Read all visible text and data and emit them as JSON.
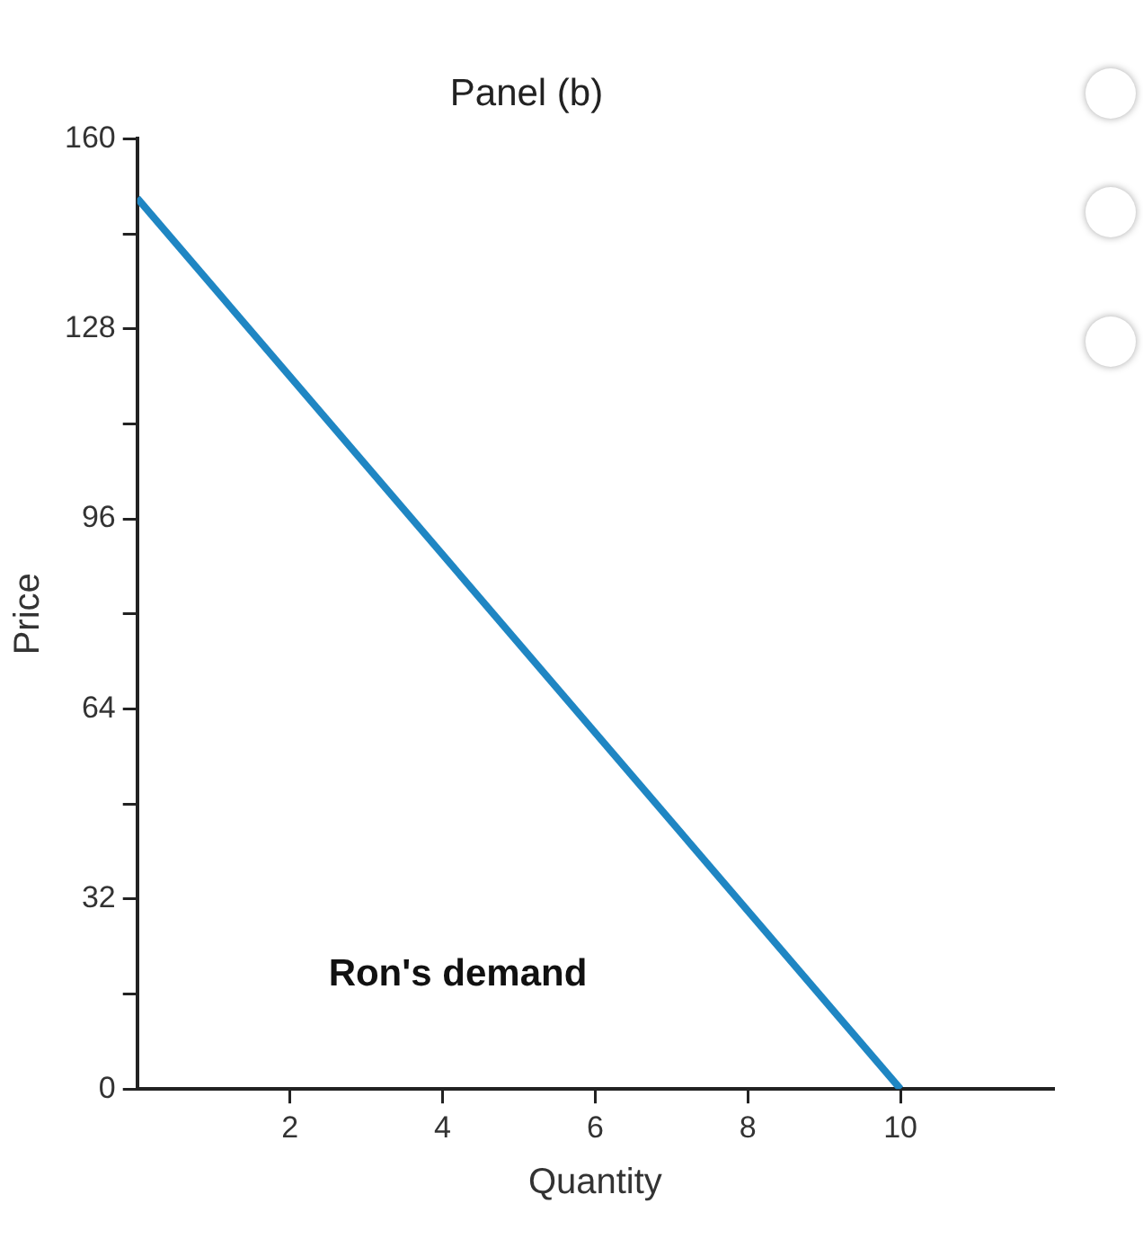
{
  "chart_data": {
    "type": "line",
    "title": "Panel (b)",
    "xlabel": "Quantity",
    "ylabel": "Price",
    "series": [
      {
        "color": "#1f86c3",
        "x": [
          0,
          10
        ],
        "values": [
          150,
          0
        ]
      }
    ],
    "xlim": [
      0,
      12
    ],
    "xticks": [
      2,
      4,
      6,
      8,
      10
    ],
    "ylim": [
      0,
      160
    ],
    "yticks": [
      0,
      {
        "value": 16,
        "label": null
      },
      32,
      {
        "value": 48,
        "label": null
      },
      64,
      {
        "value": 80,
        "label": null
      },
      96,
      {
        "value": 112,
        "label": null
      },
      128,
      {
        "value": 144,
        "label": null
      },
      160
    ],
    "annotations": [
      "Ron's demand"
    ],
    "grid": false,
    "legend": false,
    "marker": "none",
    "line_style": "solid"
  }
}
